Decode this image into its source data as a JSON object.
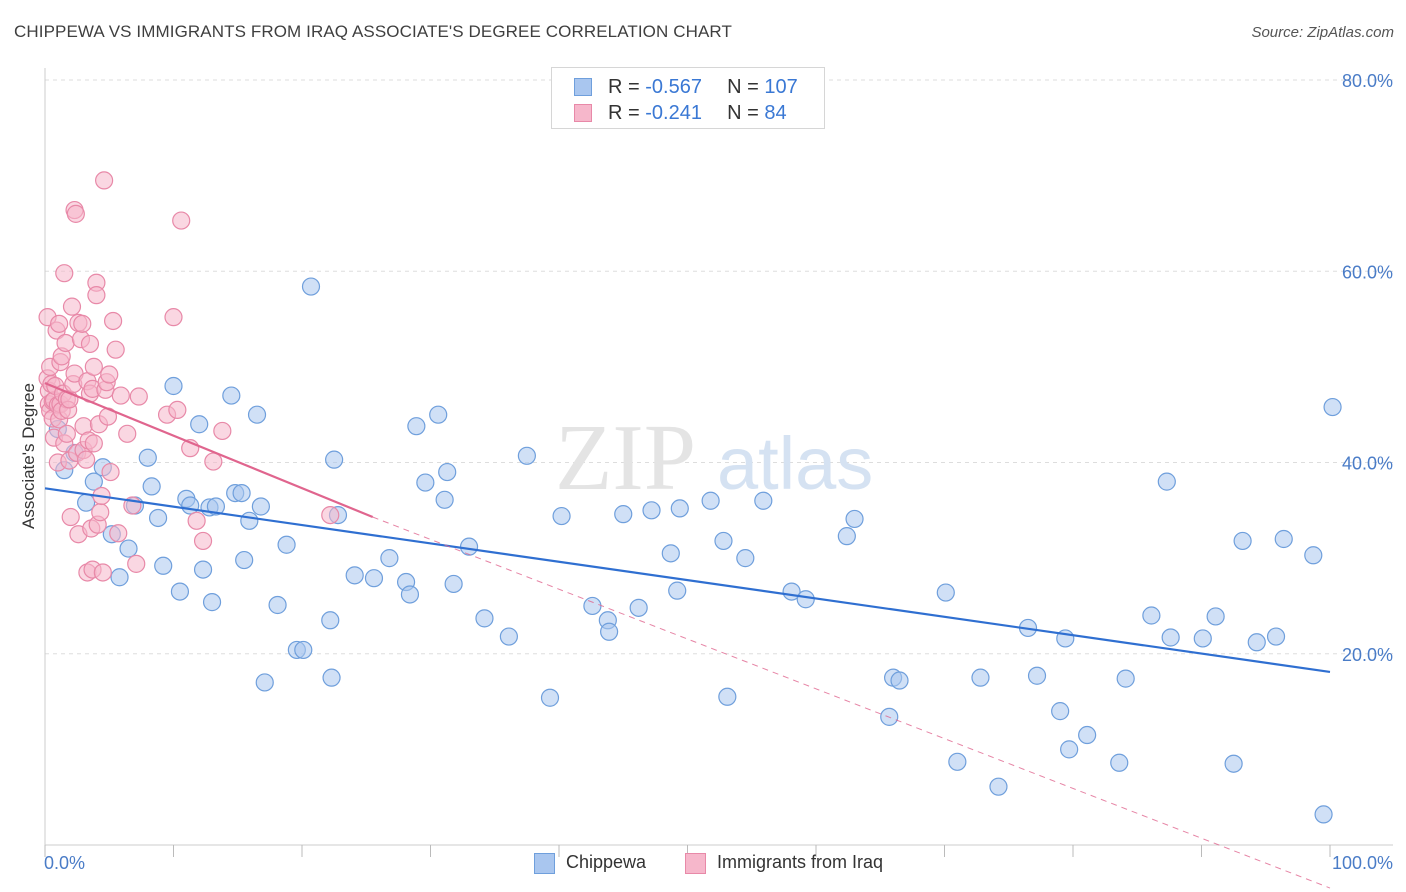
{
  "header": {
    "title": "CHIPPEWA VS IMMIGRANTS FROM IRAQ ASSOCIATE'S DEGREE CORRELATION CHART",
    "source": "Source: ZipAtlas.com"
  },
  "watermark": {
    "zip": "ZIP",
    "atlas": "atlas"
  },
  "stats_legend": {
    "rows": [
      {
        "r_label": "R = ",
        "r_value": "-0.567",
        "n_label": "N = ",
        "n_value": "107"
      },
      {
        "r_label": "R = ",
        "r_value": "-0.241",
        "n_label": "N = ",
        "n_value": "84"
      }
    ]
  },
  "colors": {
    "chippewa_fill": "#a9c6ef",
    "chippewa_stroke": "#6f9fdc",
    "chippewa_line": "#2f6fd1",
    "iraq_fill": "#f6b7cb",
    "iraq_stroke": "#e889a8",
    "iraq_line": "#e0658e",
    "tick_label": "#4a7cc7",
    "grid": "#dddddd"
  },
  "chart_data": {
    "type": "scatter",
    "title": "CHIPPEWA VS IMMIGRANTS FROM IRAQ ASSOCIATE'S DEGREE CORRELATION CHART",
    "xlabel": "",
    "ylabel": "Associate's Degree",
    "xlim": [
      0,
      100
    ],
    "ylim": [
      0,
      80
    ],
    "x_ticks": [
      0,
      10,
      20,
      30,
      40,
      50,
      60,
      70,
      80,
      90,
      100
    ],
    "x_tick_labels": {
      "0": "0.0%",
      "100": "100.0%"
    },
    "y_ticks": [
      20,
      40,
      60,
      80
    ],
    "y_tick_labels": [
      "20.0%",
      "40.0%",
      "60.0%",
      "80.0%"
    ],
    "grid": true,
    "legend_position": "bottom",
    "series": [
      {
        "name": "Chippewa",
        "r": -0.567,
        "n": 107,
        "trend": {
          "x": [
            0,
            100
          ],
          "y": [
            37.3,
            18.1
          ],
          "extrapolate": null
        },
        "points": [
          [
            1,
            43.5
          ],
          [
            1.5,
            39.2
          ],
          [
            2.3,
            41
          ],
          [
            3.2,
            35.8
          ],
          [
            3.8,
            38
          ],
          [
            4.5,
            39.5
          ],
          [
            5.2,
            32.5
          ],
          [
            5.8,
            28
          ],
          [
            6.5,
            31
          ],
          [
            7,
            35.5
          ],
          [
            8,
            40.5
          ],
          [
            8.3,
            37.5
          ],
          [
            8.8,
            34.2
          ],
          [
            9.2,
            29.2
          ],
          [
            10,
            48
          ],
          [
            10.5,
            26.5
          ],
          [
            11,
            36.2
          ],
          [
            11.3,
            35.5
          ],
          [
            12,
            44
          ],
          [
            12.3,
            28.8
          ],
          [
            12.8,
            35.3
          ],
          [
            13,
            25.4
          ],
          [
            13.3,
            35.4
          ],
          [
            14.5,
            47
          ],
          [
            14.8,
            36.8
          ],
          [
            15.3,
            36.8
          ],
          [
            15.5,
            29.8
          ],
          [
            15.9,
            33.9
          ],
          [
            16.5,
            45
          ],
          [
            16.8,
            35.4
          ],
          [
            17.1,
            17
          ],
          [
            18.1,
            25.1
          ],
          [
            18.8,
            31.4
          ],
          [
            19.6,
            20.4
          ],
          [
            20.1,
            20.4
          ],
          [
            20.7,
            58.4
          ],
          [
            22.2,
            23.5
          ],
          [
            22.3,
            17.5
          ],
          [
            22.5,
            40.3
          ],
          [
            22.8,
            34.5
          ],
          [
            24.1,
            28.2
          ],
          [
            25.6,
            27.9
          ],
          [
            26.8,
            30
          ],
          [
            28.1,
            27.5
          ],
          [
            28.4,
            26.2
          ],
          [
            28.9,
            43.8
          ],
          [
            29.6,
            37.9
          ],
          [
            30.6,
            45
          ],
          [
            31.1,
            36.1
          ],
          [
            31.3,
            39
          ],
          [
            31.8,
            27.3
          ],
          [
            33,
            31.2
          ],
          [
            34.2,
            23.7
          ],
          [
            36.1,
            21.8
          ],
          [
            37.5,
            40.7
          ],
          [
            39.3,
            15.4
          ],
          [
            40.2,
            34.4
          ],
          [
            42.6,
            25
          ],
          [
            43.8,
            23.5
          ],
          [
            43.9,
            22.3
          ],
          [
            45,
            34.6
          ],
          [
            46.2,
            24.8
          ],
          [
            47.2,
            35
          ],
          [
            48.7,
            30.5
          ],
          [
            49.2,
            26.6
          ],
          [
            49.4,
            35.2
          ],
          [
            51.8,
            36
          ],
          [
            52.8,
            31.8
          ],
          [
            53.1,
            15.5
          ],
          [
            54.5,
            30
          ],
          [
            55.9,
            36
          ],
          [
            58.1,
            26.5
          ],
          [
            59.2,
            25.7
          ],
          [
            62.4,
            32.3
          ],
          [
            63,
            34.1
          ],
          [
            65.7,
            13.4
          ],
          [
            66,
            17.5
          ],
          [
            66.5,
            17.2
          ],
          [
            70.1,
            26.4
          ],
          [
            71,
            8.7
          ],
          [
            72.8,
            17.5
          ],
          [
            74.2,
            6.1
          ],
          [
            76.5,
            22.7
          ],
          [
            77.2,
            17.7
          ],
          [
            79,
            14
          ],
          [
            79.4,
            21.6
          ],
          [
            79.7,
            10
          ],
          [
            81.1,
            11.5
          ],
          [
            83.6,
            8.6
          ],
          [
            84.1,
            17.4
          ],
          [
            86.1,
            24
          ],
          [
            87.3,
            38
          ],
          [
            87.6,
            21.7
          ],
          [
            90.1,
            21.6
          ],
          [
            91.1,
            23.9
          ],
          [
            92.5,
            8.5
          ],
          [
            93.2,
            31.8
          ],
          [
            94.3,
            21.2
          ],
          [
            95.8,
            21.8
          ],
          [
            96.4,
            32
          ],
          [
            98.7,
            30.3
          ],
          [
            99.5,
            3.2
          ],
          [
            100.2,
            45.8
          ]
        ]
      },
      {
        "name": "Immigrants from Iraq",
        "r": -0.241,
        "n": 84,
        "trend": {
          "x": [
            0,
            25.5
          ],
          "y": [
            48.3,
            34.3
          ],
          "extrapolate": {
            "x": [
              25.5,
              100
            ],
            "y": [
              34.3,
              -4.5
            ]
          }
        },
        "points": [
          [
            0.2,
            55.2
          ],
          [
            0.2,
            48.8
          ],
          [
            0.3,
            47.5
          ],
          [
            0.3,
            46.1
          ],
          [
            0.4,
            45.4
          ],
          [
            0.4,
            50
          ],
          [
            0.5,
            48.2
          ],
          [
            0.6,
            46.4
          ],
          [
            0.6,
            44.6
          ],
          [
            0.7,
            46.5
          ],
          [
            0.7,
            42.6
          ],
          [
            0.8,
            48
          ],
          [
            0.9,
            53.8
          ],
          [
            1,
            46
          ],
          [
            1,
            40
          ],
          [
            1.1,
            54.5
          ],
          [
            1.1,
            44.5
          ],
          [
            1.2,
            46.1
          ],
          [
            1.2,
            50.5
          ],
          [
            1.3,
            51.1
          ],
          [
            1.3,
            45.4
          ],
          [
            1.4,
            47.2
          ],
          [
            1.5,
            59.8
          ],
          [
            1.5,
            42
          ],
          [
            1.6,
            52.5
          ],
          [
            1.7,
            46.6
          ],
          [
            1.7,
            43
          ],
          [
            1.8,
            45.5
          ],
          [
            1.9,
            46.6
          ],
          [
            1.9,
            40.2
          ],
          [
            2,
            34.3
          ],
          [
            2.1,
            56.3
          ],
          [
            2.2,
            48.2
          ],
          [
            2.3,
            49.3
          ],
          [
            2.3,
            66.4
          ],
          [
            2.4,
            66
          ],
          [
            2.5,
            41
          ],
          [
            2.6,
            54.6
          ],
          [
            2.6,
            32.5
          ],
          [
            2.8,
            52.9
          ],
          [
            2.9,
            54.5
          ],
          [
            3,
            43.8
          ],
          [
            3,
            41.3
          ],
          [
            3.2,
            40.3
          ],
          [
            3.3,
            48.5
          ],
          [
            3.3,
            28.5
          ],
          [
            3.4,
            42.3
          ],
          [
            3.5,
            47.2
          ],
          [
            3.5,
            52.4
          ],
          [
            3.6,
            33.1
          ],
          [
            3.7,
            28.8
          ],
          [
            3.7,
            47.7
          ],
          [
            3.8,
            50
          ],
          [
            3.8,
            42
          ],
          [
            4,
            58.8
          ],
          [
            4,
            57.5
          ],
          [
            4.1,
            33.5
          ],
          [
            4.2,
            44
          ],
          [
            4.3,
            34.8
          ],
          [
            4.4,
            36.5
          ],
          [
            4.5,
            28.5
          ],
          [
            4.6,
            69.5
          ],
          [
            4.7,
            47.6
          ],
          [
            4.8,
            48.4
          ],
          [
            4.9,
            44.8
          ],
          [
            5,
            49.2
          ],
          [
            5.1,
            39
          ],
          [
            5.3,
            54.8
          ],
          [
            5.5,
            51.8
          ],
          [
            5.7,
            32.6
          ],
          [
            5.9,
            47
          ],
          [
            6.4,
            43
          ],
          [
            6.8,
            35.5
          ],
          [
            7.1,
            29.4
          ],
          [
            7.3,
            46.9
          ],
          [
            9.5,
            45
          ],
          [
            10,
            55.2
          ],
          [
            10.3,
            45.5
          ],
          [
            10.6,
            65.3
          ],
          [
            11.3,
            41.5
          ],
          [
            11.8,
            33.9
          ],
          [
            12.3,
            31.8
          ],
          [
            13.1,
            40.1
          ],
          [
            13.8,
            43.3
          ],
          [
            22.2,
            34.5
          ]
        ]
      }
    ]
  },
  "bottom_legend": {
    "items": [
      {
        "label": "Chippewa"
      },
      {
        "label": "Immigrants from Iraq"
      }
    ]
  }
}
